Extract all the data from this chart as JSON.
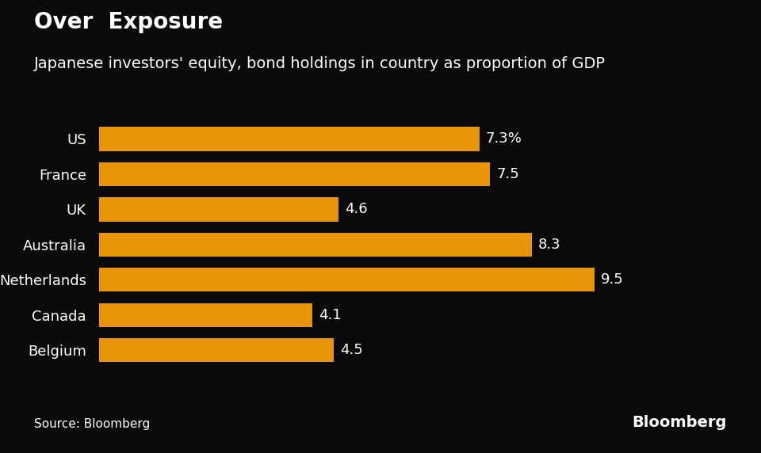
{
  "title_bold": "Over  Exposure",
  "subtitle": "Japanese investors' equity, bond holdings in country as proportion of GDP",
  "categories": [
    "US",
    "France",
    "UK",
    "Australia",
    "Netherlands",
    "Canada",
    "Belgium"
  ],
  "values": [
    7.3,
    7.5,
    4.6,
    8.3,
    9.5,
    4.1,
    4.5
  ],
  "labels": [
    "7.3%",
    "7.5",
    "4.6",
    "8.3",
    "9.5",
    "4.1",
    "4.5"
  ],
  "bar_color": "#E8950A",
  "background_color": "#0a0a0a",
  "text_color": "#ffffff",
  "source_text": "Source: Bloomberg",
  "bloomberg_text": "Bloomberg",
  "xlim": [
    0,
    10.8
  ],
  "title_fontsize": 20,
  "subtitle_fontsize": 14,
  "label_fontsize": 13,
  "category_fontsize": 13,
  "source_fontsize": 11
}
